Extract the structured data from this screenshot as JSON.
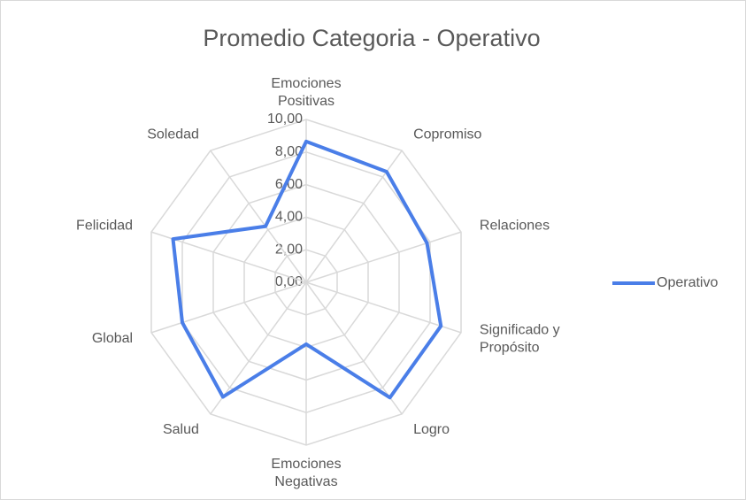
{
  "chart_data": {
    "type": "radar",
    "title": "Promedio Categoria - Operativo",
    "categories": [
      "Emociones Positivas",
      "Copromiso",
      "Relaciones",
      "Significado y Propósito",
      "Logro",
      "Emociones Negativas",
      "Salud",
      "Global",
      "Felicidad",
      "Soledad"
    ],
    "series": [
      {
        "name": "Operativo",
        "color": "#4a7ee8",
        "values": [
          8.65,
          8.4,
          7.8,
          8.7,
          8.75,
          3.8,
          8.7,
          8.0,
          8.6,
          4.25
        ]
      }
    ],
    "ylim": [
      0,
      10
    ],
    "yticks": [
      {
        "value": 0,
        "label": "0,00"
      },
      {
        "value": 2,
        "label": "2,00"
      },
      {
        "value": 4,
        "label": "4,00"
      },
      {
        "value": 6,
        "label": "6,00"
      },
      {
        "value": 8,
        "label": "8,00"
      },
      {
        "value": 10,
        "label": "10,00"
      }
    ],
    "grid": true,
    "legend": "right"
  }
}
